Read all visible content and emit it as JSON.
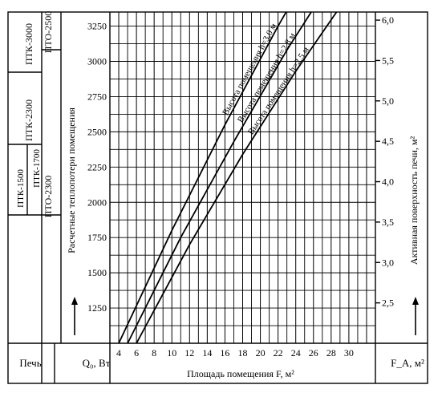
{
  "left_table": {
    "col1_top": "ПТК-3000",
    "col1_mid": "ПТК-2300",
    "col1_sub_a": "ПТК-1500",
    "col1_sub_b": "ПТК-1700",
    "col2_top": "ПТО-2500",
    "col2_bottom": "ПТО-2300",
    "footer": "Печь"
  },
  "chart_data": {
    "type": "line",
    "xlabel": "Площадь помещения F, м²",
    "ylabel_left": "Расчетные теплопотери помещения",
    "ylabel_right": "Активная поверхность печи, м²",
    "y_unit_left": "Q₀, Вт",
    "y_unit_right": "F_A, м²",
    "x_ticks": [
      "4",
      "6",
      "8",
      "10",
      "12",
      "14",
      "16",
      "18",
      "20",
      "22",
      "24",
      "26",
      "28",
      "30"
    ],
    "xlim": [
      3,
      33
    ],
    "y_left_ticks": [
      "1250",
      "1500",
      "1750",
      "2000",
      "2250",
      "2500",
      "2750",
      "3000",
      "3250"
    ],
    "ylim_left": [
      1000,
      3350
    ],
    "y_right_ticks": [
      "2,5",
      "3,0",
      "3,5",
      "4,0",
      "4,5",
      "5,0",
      "5,5",
      "6,0"
    ],
    "ylim_right": [
      2.0,
      6.1
    ],
    "grid": true,
    "series": [
      {
        "name": "Высота помещения h=3,0 м",
        "x": [
          4,
          10,
          16,
          22,
          25.2
        ],
        "y": [
          1000,
          1800,
          2550,
          3250,
          3600
        ]
      },
      {
        "name": "Высота помещения h=2,8 м",
        "x": [
          5,
          11,
          17,
          23,
          28.8
        ],
        "y": [
          1000,
          1750,
          2430,
          3080,
          3650
        ]
      },
      {
        "name": "Высота помещения h=2,5 м",
        "x": [
          6,
          12,
          18,
          24,
          30.8
        ],
        "y": [
          1000,
          1700,
          2340,
          2930,
          3550
        ]
      }
    ]
  }
}
